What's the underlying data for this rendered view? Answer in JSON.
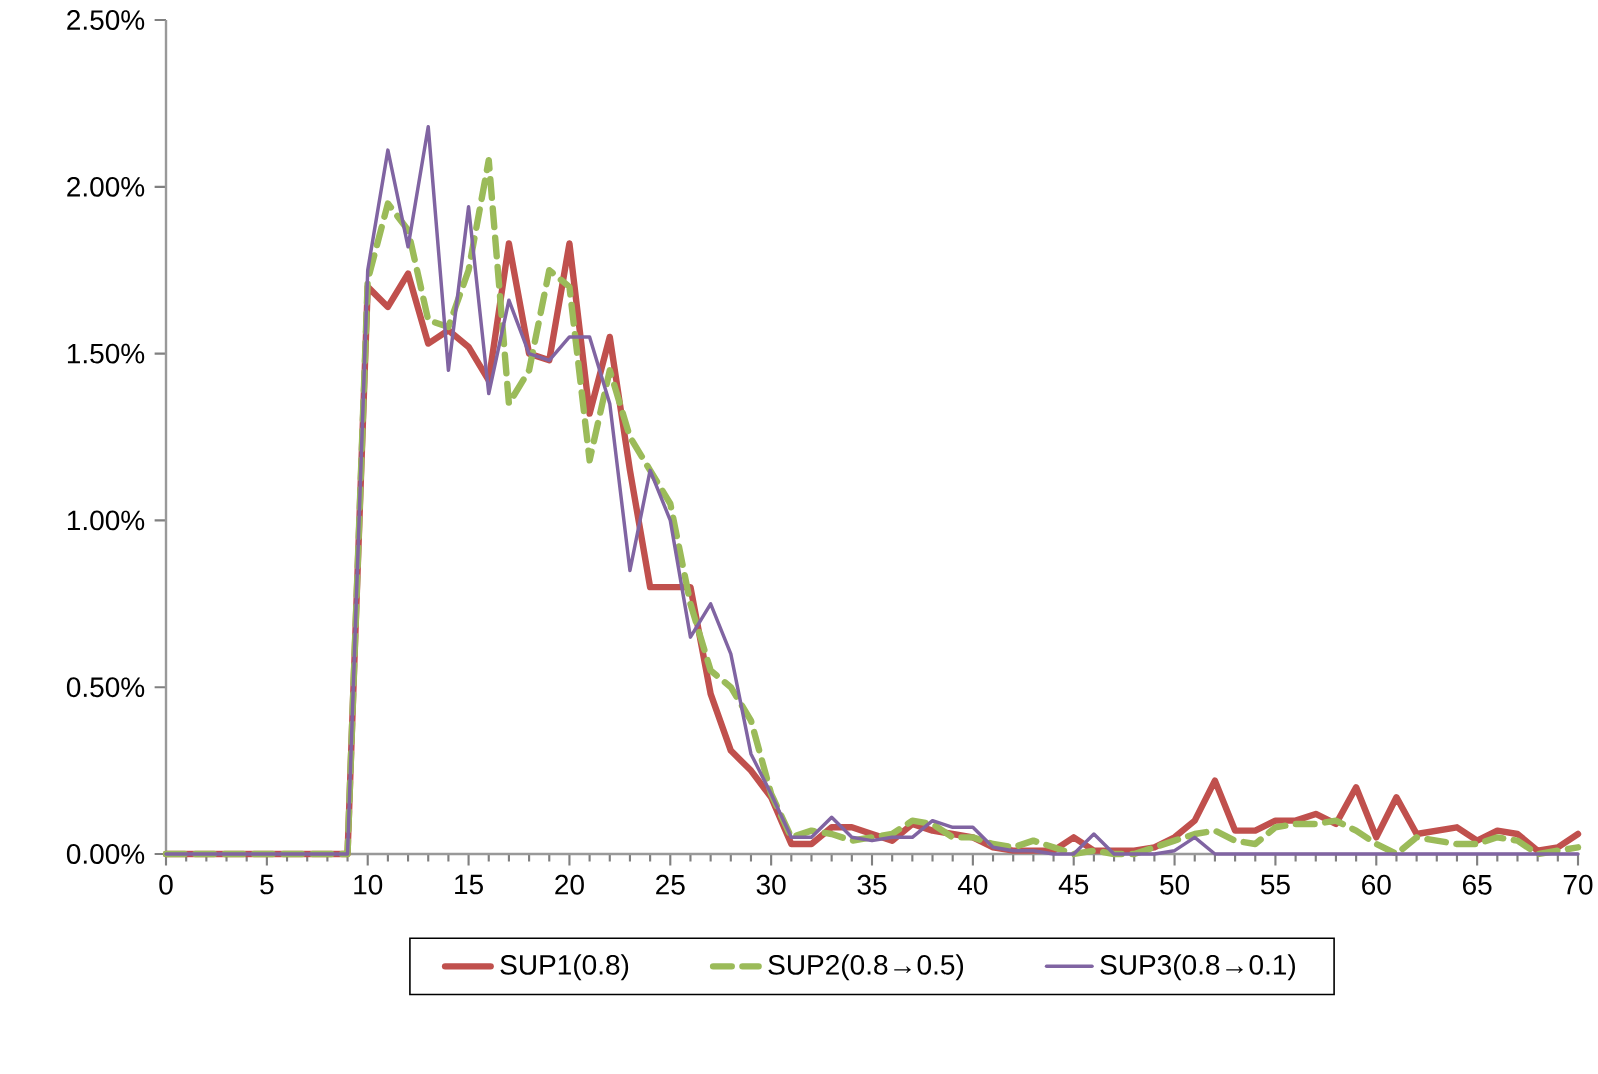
{
  "chart_data": {
    "type": "line",
    "x": [
      0,
      1,
      2,
      3,
      4,
      5,
      6,
      7,
      8,
      9,
      10,
      11,
      12,
      13,
      14,
      15,
      16,
      17,
      18,
      19,
      20,
      21,
      22,
      23,
      24,
      25,
      26,
      27,
      28,
      29,
      30,
      31,
      32,
      33,
      34,
      35,
      36,
      37,
      38,
      39,
      40,
      41,
      42,
      43,
      44,
      45,
      46,
      47,
      48,
      49,
      50,
      51,
      52,
      53,
      54,
      55,
      56,
      57,
      58,
      59,
      60,
      61,
      62,
      63,
      64,
      65,
      66,
      67,
      68,
      69,
      70
    ],
    "series": [
      {
        "name": "SUP1(0.8)",
        "color": "#c0504d",
        "line_style": "solid",
        "values": [
          0,
          0,
          0,
          0,
          0,
          0,
          0,
          0,
          0,
          0,
          1.7,
          1.64,
          1.74,
          1.53,
          1.57,
          1.52,
          1.42,
          1.83,
          1.5,
          1.48,
          1.83,
          1.32,
          1.55,
          1.15,
          0.8,
          0.8,
          0.8,
          0.48,
          0.31,
          0.25,
          0.17,
          0.03,
          0.03,
          0.08,
          0.08,
          0.06,
          0.04,
          0.09,
          0.07,
          0.06,
          0.05,
          0.02,
          0.01,
          0.01,
          0.01,
          0.05,
          0.01,
          0.01,
          0.01,
          0.02,
          0.05,
          0.1,
          0.22,
          0.07,
          0.07,
          0.1,
          0.1,
          0.12,
          0.09,
          0.2,
          0.05,
          0.17,
          0.06,
          0.07,
          0.08,
          0.04,
          0.07,
          0.06,
          0.01,
          0.02,
          0.06
        ]
      },
      {
        "name": "SUP2(0.8→0.5)",
        "color": "#9bbb59",
        "line_style": "dashed",
        "values": [
          0,
          0,
          0,
          0,
          0,
          0,
          0,
          0,
          0,
          0,
          1.72,
          1.95,
          1.87,
          1.6,
          1.58,
          1.75,
          2.08,
          1.35,
          1.45,
          1.75,
          1.7,
          1.18,
          1.45,
          1.25,
          1.15,
          1.05,
          0.75,
          0.55,
          0.5,
          0.4,
          0.18,
          0.05,
          0.07,
          0.06,
          0.04,
          0.05,
          0.06,
          0.1,
          0.09,
          0.05,
          0.05,
          0.03,
          0.02,
          0.04,
          0.02,
          0.0,
          0.01,
          0.0,
          0.0,
          0.02,
          0.04,
          0.06,
          0.07,
          0.04,
          0.03,
          0.08,
          0.09,
          0.09,
          0.1,
          0.07,
          0.03,
          0.0,
          0.05,
          0.04,
          0.03,
          0.03,
          0.05,
          0.04,
          0.0,
          0.01,
          0.02
        ]
      },
      {
        "name": "SUP3(0.8→0.1)",
        "color": "#8064a2",
        "line_style": "solid",
        "values": [
          0,
          0,
          0,
          0,
          0,
          0,
          0,
          0,
          0,
          0,
          1.75,
          2.11,
          1.82,
          2.18,
          1.45,
          1.94,
          1.38,
          1.66,
          1.5,
          1.48,
          1.55,
          1.55,
          1.35,
          0.85,
          1.15,
          1.0,
          0.65,
          0.75,
          0.6,
          0.3,
          0.18,
          0.05,
          0.05,
          0.11,
          0.05,
          0.04,
          0.05,
          0.05,
          0.1,
          0.08,
          0.08,
          0.02,
          0.01,
          0.01,
          0.0,
          0.0,
          0.06,
          0.0,
          0.0,
          0.0,
          0.01,
          0.05,
          0.0,
          0.0,
          0.0,
          0.0,
          0.0,
          0.0,
          0.0,
          0.0,
          0.0,
          0.0,
          0.0,
          0.0,
          0.0,
          0.0,
          0.0,
          0.0,
          0.0,
          0.0,
          0.0
        ]
      }
    ],
    "xlim": [
      0,
      70
    ],
    "xticks": [
      0,
      5,
      10,
      15,
      20,
      25,
      30,
      35,
      40,
      45,
      50,
      55,
      60,
      65,
      70
    ],
    "ylim": [
      0,
      2.5
    ],
    "yticks": [
      {
        "value": 0,
        "label": "0.00%"
      },
      {
        "value": 0.5,
        "label": "0.50%"
      },
      {
        "value": 1,
        "label": "1.00%"
      },
      {
        "value": 1.5,
        "label": "1.50%"
      },
      {
        "value": 2,
        "label": "2.00%"
      },
      {
        "value": 2.5,
        "label": "2.50%"
      }
    ],
    "grid": false,
    "legend": "bottom",
    "marker": "none"
  }
}
